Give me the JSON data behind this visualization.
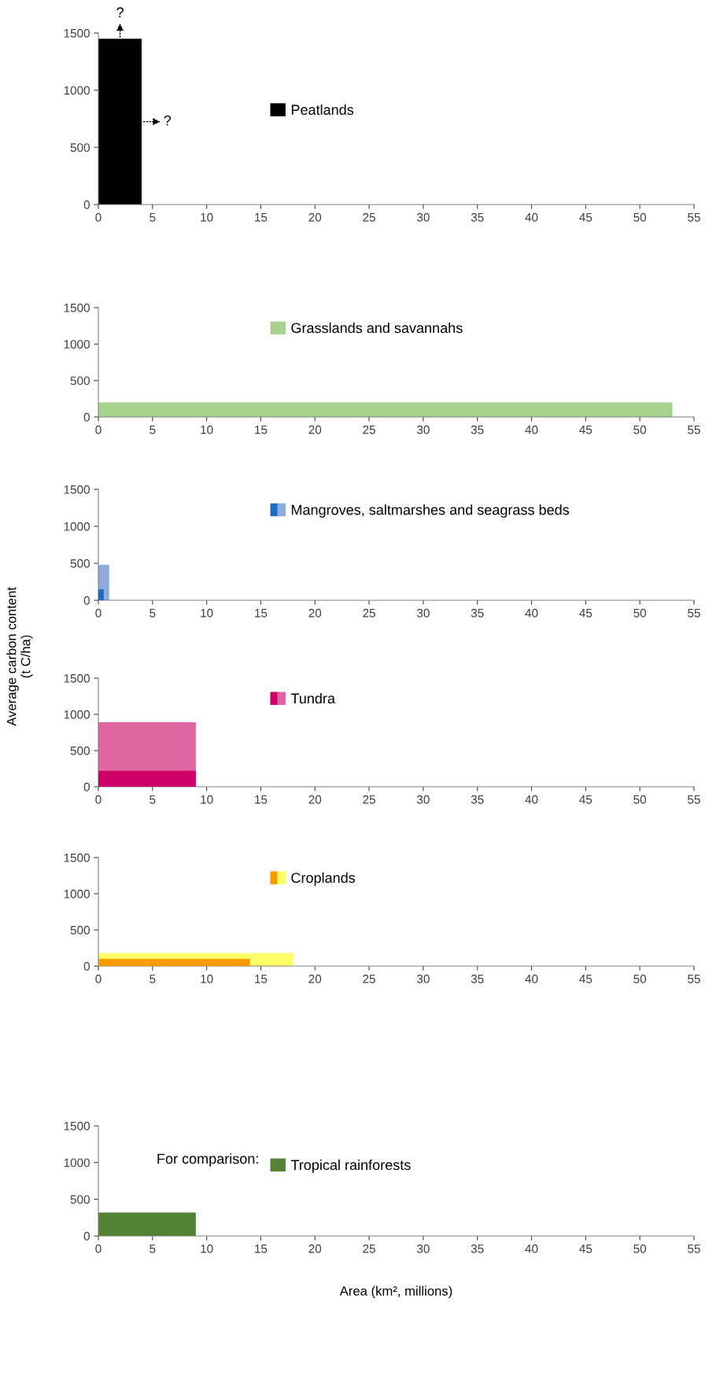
{
  "chart_data": [
    {
      "type": "area",
      "xlim": [
        0,
        55
      ],
      "ylim": [
        0,
        1500
      ],
      "xticks": [
        0,
        5,
        10,
        15,
        20,
        25,
        30,
        35,
        40,
        45,
        50,
        55
      ],
      "yticks": [
        0,
        500,
        1000,
        1500
      ],
      "legend": "top",
      "grid": false,
      "series": [
        {
          "name": "Peatlands",
          "color": "#000000",
          "x": [
            0,
            4
          ],
          "values": [
            1450,
            1450
          ]
        }
      ],
      "annotations": [
        {
          "text": "?",
          "x": 2,
          "y": 1450
        },
        {
          "text": "?",
          "x": 4,
          "y": 725
        }
      ]
    },
    {
      "type": "area",
      "xlim": [
        0,
        55
      ],
      "ylim": [
        0,
        1500
      ],
      "xticks": [
        0,
        5,
        10,
        15,
        20,
        25,
        30,
        35,
        40,
        45,
        50,
        55
      ],
      "yticks": [
        0,
        500,
        1000,
        1500
      ],
      "legend": "top",
      "grid": false,
      "series": [
        {
          "name": "Grasslands and savannahs",
          "color": "#a9d18e",
          "x": [
            0,
            53
          ],
          "values": [
            200,
            200
          ]
        }
      ]
    },
    {
      "type": "area",
      "xlim": [
        0,
        55
      ],
      "ylim": [
        0,
        1500
      ],
      "xticks": [
        0,
        5,
        10,
        15,
        20,
        25,
        30,
        35,
        40,
        45,
        50,
        55
      ],
      "yticks": [
        0,
        500,
        1000,
        1500
      ],
      "legend": "top",
      "grid": false,
      "series": [
        {
          "name": "Mangroves, saltmarshes and seagrass beds",
          "color": "#8faadc",
          "x": [
            0,
            1
          ],
          "values": [
            480,
            480
          ]
        },
        {
          "color": "#1f6fc0",
          "x": [
            0,
            0.5
          ],
          "values": [
            150,
            150
          ]
        }
      ]
    },
    {
      "type": "area",
      "xlim": [
        0,
        55
      ],
      "ylim": [
        0,
        1500
      ],
      "xticks": [
        0,
        5,
        10,
        15,
        20,
        25,
        30,
        35,
        40,
        45,
        50,
        55
      ],
      "yticks": [
        0,
        500,
        1000,
        1500
      ],
      "legend": "top",
      "grid": false,
      "ylabel": "Average carbon content\n(t C/ha)",
      "series": [
        {
          "name": "Tundra",
          "color": "#e066a3",
          "x": [
            0,
            9
          ],
          "values": [
            890,
            890
          ]
        },
        {
          "color": "#cc0066",
          "x": [
            0,
            9
          ],
          "values": [
            220,
            220
          ]
        }
      ]
    },
    {
      "type": "area",
      "xlim": [
        0,
        55
      ],
      "ylim": [
        0,
        1500
      ],
      "xticks": [
        0,
        5,
        10,
        15,
        20,
        25,
        30,
        35,
        40,
        45,
        50,
        55
      ],
      "yticks": [
        0,
        500,
        1000,
        1500
      ],
      "legend": "top",
      "grid": false,
      "series": [
        {
          "name": "Croplands",
          "color": "#ffff66",
          "x": [
            0,
            18
          ],
          "values": [
            180,
            180
          ]
        },
        {
          "color": "#f59b00",
          "x": [
            0,
            14
          ],
          "values": [
            100,
            100
          ]
        }
      ]
    },
    {
      "type": "area",
      "xlim": [
        0,
        55
      ],
      "ylim": [
        0,
        1500
      ],
      "xticks": [
        0,
        5,
        10,
        15,
        20,
        25,
        30,
        35,
        40,
        45,
        50,
        55
      ],
      "yticks": [
        0,
        500,
        1000,
        1500
      ],
      "legend": "top",
      "grid": false,
      "xlabel": "Area (km², millions)",
      "series": [
        {
          "name": "Tropical rainforests",
          "color": "#548235",
          "x": [
            0,
            9
          ],
          "values": [
            320,
            320
          ]
        }
      ],
      "annotations": [
        "For comparison:"
      ]
    }
  ]
}
